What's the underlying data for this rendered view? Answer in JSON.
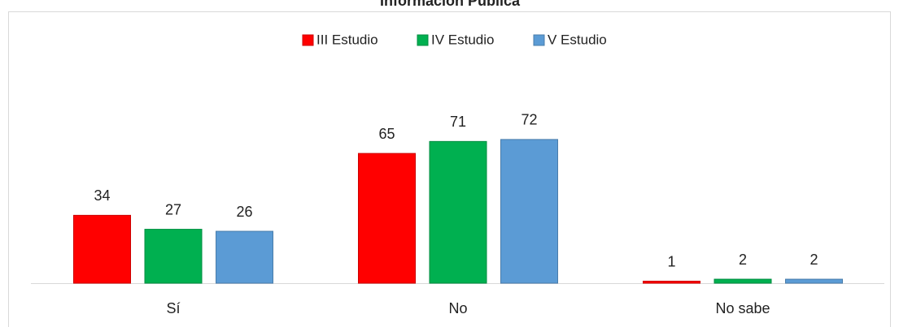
{
  "chart_data": {
    "type": "bar",
    "title": "Información Pública",
    "categories": [
      "Sí",
      "No",
      "No sabe"
    ],
    "series": [
      {
        "name": "III Estudio",
        "color": "#ff0000",
        "values": [
          34,
          65,
          1
        ]
      },
      {
        "name": "IV Estudio",
        "color": "#00b050",
        "values": [
          27,
          71,
          2
        ]
      },
      {
        "name": "V Estudio",
        "color": "#5b9bd5",
        "values": [
          26,
          72,
          2
        ]
      }
    ],
    "legend": "top"
  }
}
